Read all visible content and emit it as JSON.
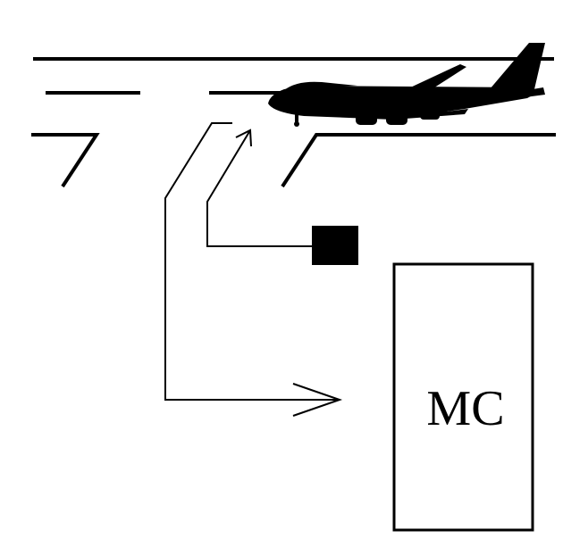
{
  "diagram": {
    "box_label": "MC",
    "colors": {
      "stroke": "#000000",
      "background": "#ffffff",
      "fill": "#000000"
    },
    "icons": {
      "aircraft": "airplane-icon",
      "sensor": "sensor-square-icon"
    }
  }
}
